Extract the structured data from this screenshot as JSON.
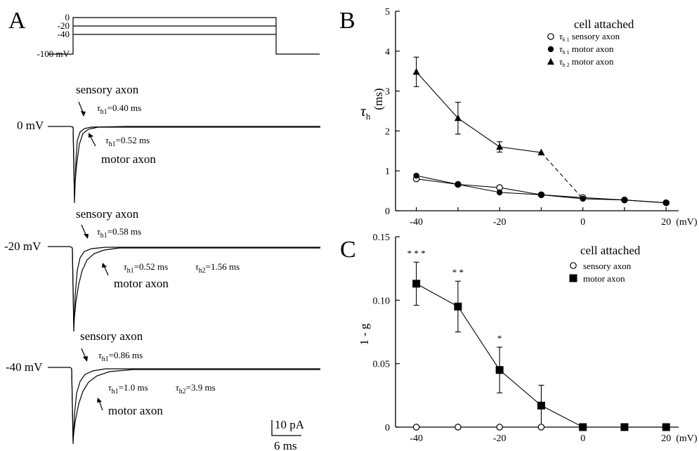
{
  "panels": {
    "A": {
      "letter": "A",
      "protocol": {
        "labels": [
          "0",
          "-20",
          "-40",
          "-100 mV"
        ]
      },
      "traces": [
        {
          "voltage_label": "0 mV",
          "sensory_label": "sensory axon",
          "sensory_tau": {
            "sym": "τ",
            "sub": "h1",
            "rest": "=0.40 ms"
          },
          "motor_tau": {
            "sym": "τ",
            "sub": "h1",
            "rest": "=0.52 ms"
          },
          "motor_label": "motor axon"
        },
        {
          "voltage_label": "-20 mV",
          "sensory_label": "sensory axon",
          "sensory_tau": {
            "sym": "τ",
            "sub": "h1",
            "rest": "=0.58 ms"
          },
          "motor_tau": {
            "sym": "τ",
            "sub": "h1",
            "rest": "=0.52 ms"
          },
          "motor_tau2": {
            "sym": "τ",
            "sub": "h2",
            "rest": "=1.56 ms"
          },
          "motor_label": "motor axon"
        },
        {
          "voltage_label": "-40 mV",
          "sensory_label": "sensory axon",
          "sensory_tau": {
            "sym": "τ",
            "sub": "h1",
            "rest": "=0.86 ms"
          },
          "motor_tau": {
            "sym": "τ",
            "sub": "h1",
            "rest": "=1.0 ms"
          },
          "motor_tau2": {
            "sym": "τ",
            "sub": "h2",
            "rest": "=3.9 ms"
          },
          "motor_label": "motor axon"
        }
      ],
      "scale_bar": {
        "current": "10 pA",
        "time": "6 ms"
      }
    },
    "B": {
      "letter": "B"
    },
    "C": {
      "letter": "C"
    }
  },
  "chart_data": [
    {
      "panel": "B",
      "type": "line",
      "title": "cell attached",
      "xlabel": "(mV)",
      "ylabel": "τ",
      "ylabel_sub": "h",
      "ylabel_unit": "(ms)",
      "xlim": [
        -45,
        23
      ],
      "ylim": [
        0,
        5
      ],
      "xticks": [
        -40,
        -20,
        0,
        20
      ],
      "yticks": [
        0,
        1,
        2,
        3,
        4,
        5
      ],
      "legend_position": "top-right",
      "series": [
        {
          "name_sym": "τ",
          "name_sub": "h 1",
          "name_rest": "sensory axon",
          "marker": "circle-open",
          "x": [
            -40,
            -30,
            -20,
            -10,
            0,
            10,
            20
          ],
          "y": [
            0.8,
            0.66,
            0.58,
            0.4,
            0.33,
            0.27,
            0.2
          ]
        },
        {
          "name_sym": "τ",
          "name_sub": "h 1",
          "name_rest": "motor axon",
          "marker": "circle-filled",
          "x": [
            -40,
            -30,
            -20,
            -10,
            0,
            10,
            20
          ],
          "y": [
            0.88,
            0.66,
            0.46,
            0.4,
            0.3,
            0.27,
            0.2
          ]
        },
        {
          "name_sym": "τ",
          "name_sub": "h 2",
          "name_rest": "motor axon",
          "marker": "triangle-filled",
          "x": [
            -40,
            -30,
            -20,
            -10
          ],
          "y": [
            3.48,
            2.32,
            1.6,
            1.46
          ],
          "err": [
            0.37,
            0.4,
            0.13,
            0
          ],
          "dashed_to": {
            "x": 0,
            "y": 0.3
          }
        }
      ]
    },
    {
      "panel": "C",
      "type": "line",
      "title": "cell attached",
      "xlabel": "(mV)",
      "ylabel": "1 - g",
      "xlim": [
        -45,
        23
      ],
      "ylim": [
        0,
        0.15
      ],
      "xticks": [
        -40,
        -20,
        0,
        20
      ],
      "yticks": [
        0,
        0.05,
        0.1,
        0.15
      ],
      "ytick_labels": [
        "0",
        "0.05",
        "0.10",
        "0.15"
      ],
      "legend_position": "top-right",
      "series": [
        {
          "name": "sensory axon",
          "marker": "circle-open",
          "x": [
            -40,
            -30,
            -20,
            -10,
            0,
            10,
            20
          ],
          "y": [
            0,
            0,
            0,
            0,
            0,
            0,
            0
          ]
        },
        {
          "name": "motor axon",
          "marker": "square-filled",
          "x": [
            -40,
            -30,
            -20,
            -10,
            0,
            10,
            20
          ],
          "y": [
            0.113,
            0.095,
            0.045,
            0.017,
            0,
            0,
            0
          ],
          "err": [
            0.017,
            0.02,
            0.018,
            0.016,
            0,
            0,
            0
          ]
        }
      ],
      "significance": [
        {
          "x": -40,
          "label": "* * *"
        },
        {
          "x": -30,
          "label": "* *"
        },
        {
          "x": -20,
          "label": "*"
        }
      ]
    }
  ]
}
